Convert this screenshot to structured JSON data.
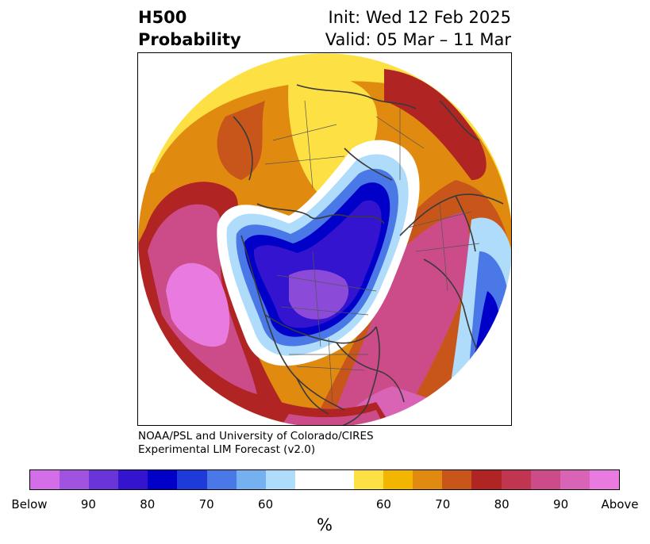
{
  "title": {
    "left_line1": "H500",
    "left_line2": "Probability",
    "right_line1": "Init: Wed 12 Feb 2025",
    "right_line2": "Valid: 05 Mar – 11 Mar"
  },
  "credit": {
    "line1": "NOAA/PSL and University of Colorado/CIRES",
    "line2": "Experimental LIM Forecast (v2.0)"
  },
  "colorbar": {
    "colors": [
      "#d36ee8",
      "#a052e0",
      "#6a35d8",
      "#3514d0",
      "#0000c8",
      "#1e3ad8",
      "#4a78e6",
      "#75b1f0",
      "#aedcfa",
      "#ffffff",
      "#ffffff",
      "#fde044",
      "#f2b500",
      "#e08a10",
      "#c8561a",
      "#b02424",
      "#c03550",
      "#cc4c8a",
      "#d964b5",
      "#e97ae0"
    ],
    "tick_labels": [
      "Below",
      "90",
      "80",
      "70",
      "60",
      "60",
      "70",
      "80",
      "90",
      "Above"
    ],
    "units": "%"
  },
  "map": {
    "projection": "north-polar stereographic",
    "palette": {
      "above_strong": "#e97ae0",
      "above_high": "#cc4c8a",
      "above_mid": "#b02424",
      "above_low": "#e08a10",
      "above_weak": "#fde044",
      "neutral": "#ffffff",
      "below_weak": "#aedcfa",
      "below_low": "#4a78e6",
      "below_mid": "#0000c8",
      "below_high": "#3514d0",
      "below_strong": "#8c4ad8"
    }
  }
}
